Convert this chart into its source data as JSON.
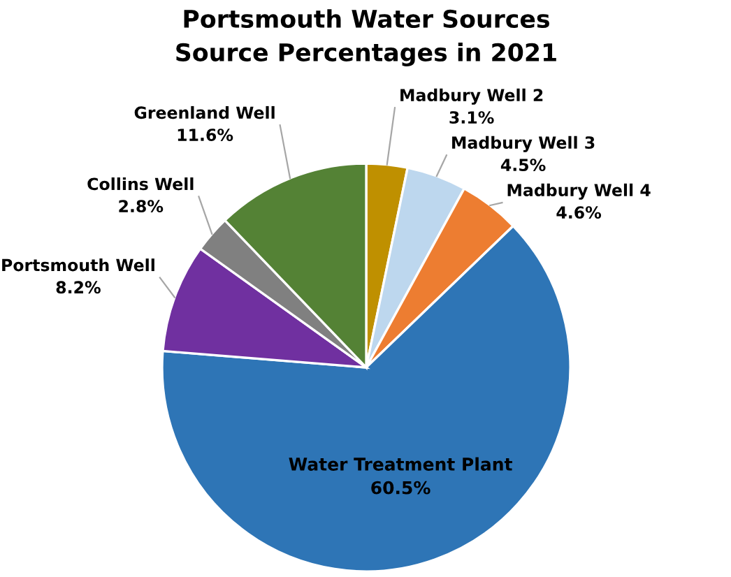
{
  "chart_data": {
    "type": "pie",
    "title": "Portsmouth Water Sources",
    "subtitle": "Source Percentages in 2021",
    "categories": [
      "Madbury Well 2",
      "Madbury Well 3",
      "Madbury Well 4",
      "Water Treatment Plant",
      "Portsmouth Well",
      "Collins Well",
      "Greenland Well"
    ],
    "values": [
      3.1,
      4.5,
      4.6,
      60.5,
      8.2,
      2.8,
      11.6
    ],
    "value_labels": [
      "3.1%",
      "4.5%",
      "4.6%",
      "60.5%",
      "8.2%",
      "2.8%",
      "11.6%"
    ],
    "colors": [
      "#bf9000",
      "#bdd7ee",
      "#ed7d31",
      "#2e75b6",
      "#7030a0",
      "#808080",
      "#548235"
    ]
  }
}
